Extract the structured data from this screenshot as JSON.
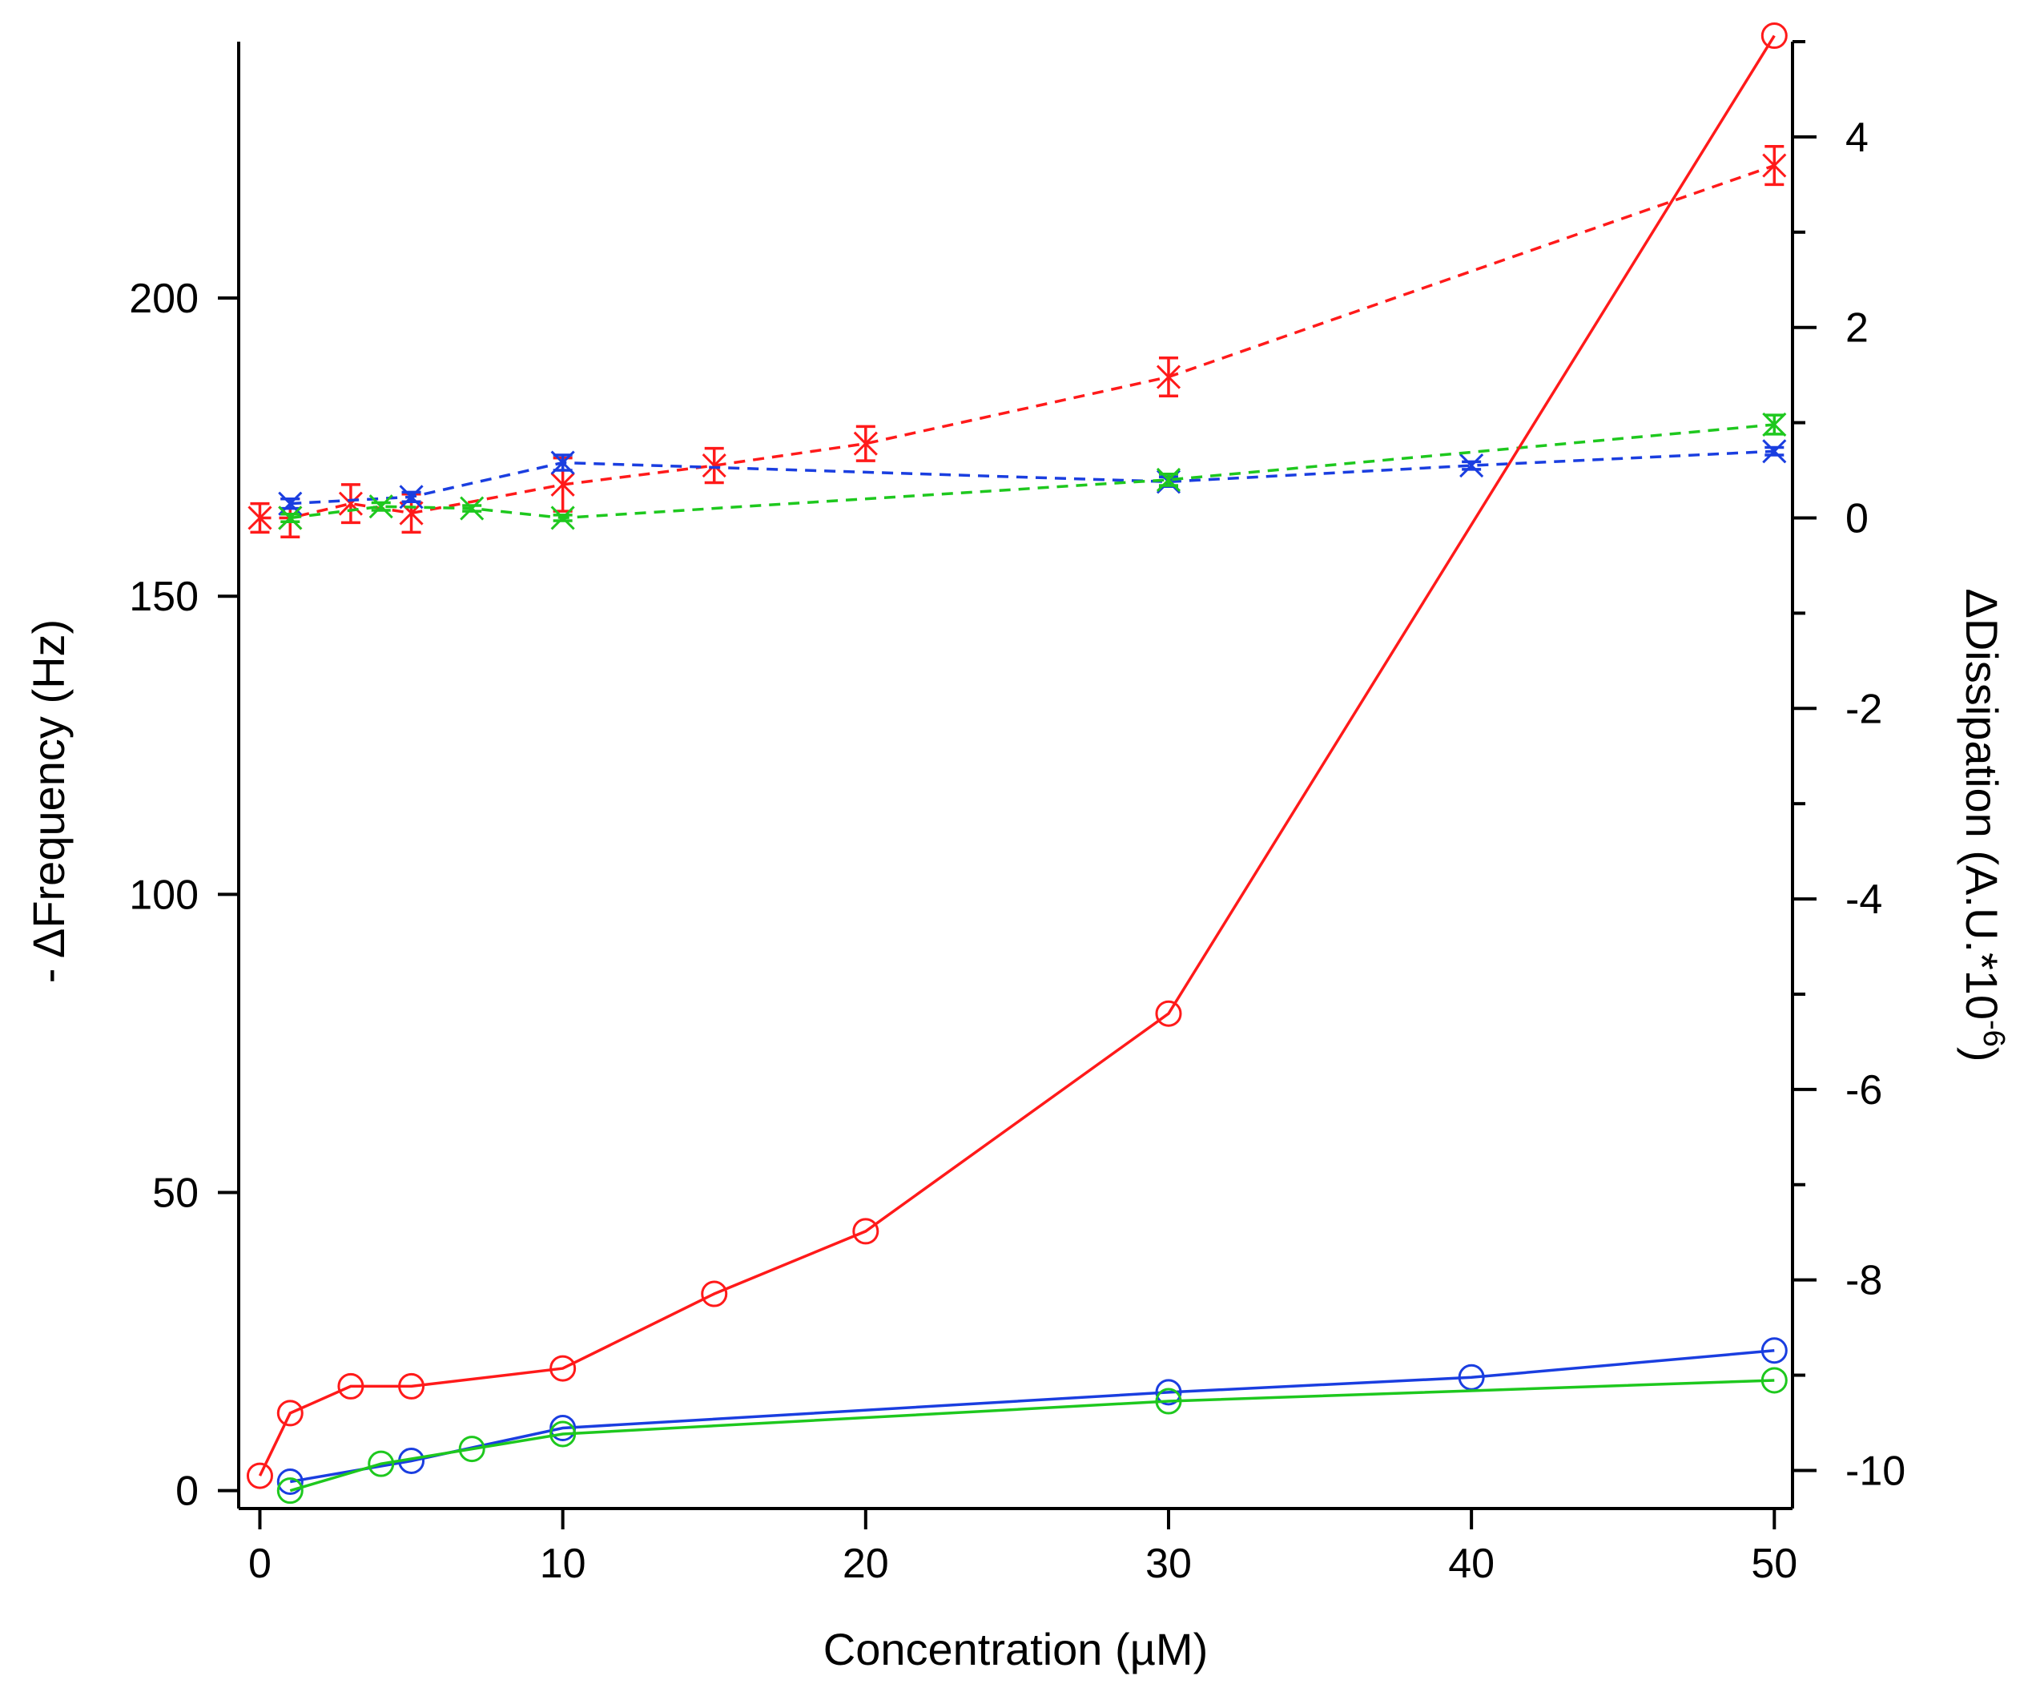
{
  "chart_data": {
    "type": "line",
    "title": "",
    "x": {
      "label": "Concentration (µM)",
      "range": [
        -0.7,
        50.6
      ],
      "ticks": [
        0,
        10,
        20,
        30,
        40,
        50
      ]
    },
    "y_left": {
      "label": "- ΔFrequency (Hz)",
      "range": [
        -3,
        243
      ],
      "ticks": [
        0,
        50,
        100,
        150,
        200
      ]
    },
    "y_right": {
      "label": "ΔDissipation (A.U.*10",
      "label_superscript": "-6",
      "label_close": ")",
      "range": [
        -10.4,
        5.0
      ],
      "ticks": [
        -10,
        -8,
        -6,
        -4,
        -2,
        0,
        2,
        4
      ]
    },
    "grid": false,
    "legend": "none",
    "series": [
      {
        "name": "red frequency",
        "axis": "left",
        "color": "#ff1a1a",
        "dash": "solid",
        "marker": "circle",
        "x": [
          0,
          1,
          3,
          5,
          10,
          15,
          20,
          30,
          50
        ],
        "y": [
          2.5,
          13,
          17.5,
          17.5,
          20.5,
          33,
          43.5,
          80,
          244
        ]
      },
      {
        "name": "blue frequency",
        "axis": "left",
        "color": "#1a3ee0",
        "dash": "solid",
        "marker": "circle",
        "x": [
          1,
          5,
          10,
          30,
          40,
          50
        ],
        "y": [
          1.5,
          5,
          10.5,
          16.5,
          19,
          23.5
        ]
      },
      {
        "name": "green frequency",
        "axis": "left",
        "color": "#1ec81e",
        "dash": "solid",
        "marker": "circle",
        "x": [
          1,
          4,
          7,
          10,
          30,
          50
        ],
        "y": [
          0,
          4.5,
          7,
          9.5,
          15,
          18.5
        ]
      },
      {
        "name": "red dissipation",
        "axis": "right",
        "color": "#ff1a1a",
        "dash": "dashed",
        "marker": "x",
        "x": [
          0,
          1,
          3,
          5,
          10,
          15,
          20,
          30,
          50
        ],
        "y": [
          0,
          0,
          0.15,
          0.05,
          0.35,
          0.55,
          0.78,
          1.48,
          3.7
        ],
        "err": [
          0.15,
          0.2,
          0.2,
          0.2,
          0.28,
          0.18,
          0.18,
          0.2,
          0.2
        ]
      },
      {
        "name": "blue dissipation",
        "axis": "right",
        "color": "#1a3ee0",
        "dash": "dashed",
        "marker": "x",
        "x": [
          1,
          5,
          10,
          30,
          40,
          50
        ],
        "y": [
          0.15,
          0.22,
          0.58,
          0.38,
          0.55,
          0.7
        ],
        "err": [
          0.05,
          0.05,
          0.08,
          0.05,
          0.04,
          0.04
        ]
      },
      {
        "name": "green dissipation",
        "axis": "right",
        "color": "#1ec81e",
        "dash": "dashed",
        "marker": "x",
        "x": [
          1,
          4,
          7,
          10,
          30,
          50
        ],
        "y": [
          0.0,
          0.12,
          0.1,
          0.0,
          0.4,
          0.98
        ],
        "err": [
          0.04,
          0.04,
          0.03,
          0.03,
          0.06,
          0.1
        ]
      }
    ]
  }
}
